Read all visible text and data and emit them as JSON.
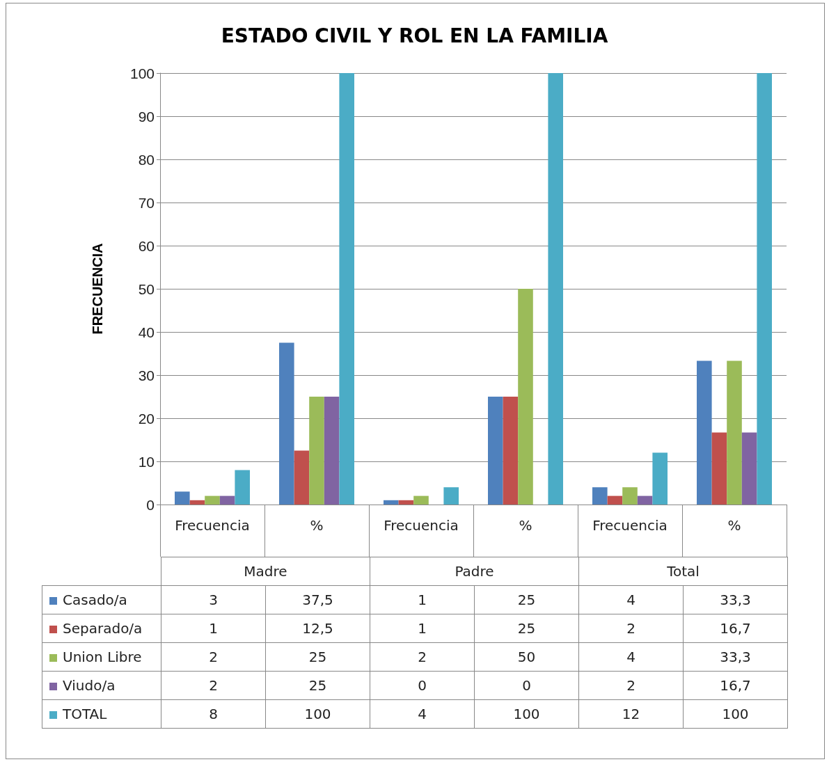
{
  "chart_data": {
    "type": "bar",
    "title": "ESTADO CIVIL Y ROL EN LA FAMILIA",
    "ylabel": "FRECUENCIA",
    "categories": [
      "Frecuencia",
      "%",
      "Frecuencia",
      "%",
      "Frecuencia",
      "%"
    ],
    "annotations": [
      "Madre",
      "Padre",
      "Total"
    ],
    "series": [
      {
        "name": "Casado/a",
        "color": "#4f81bd",
        "values": [
          3,
          37.5,
          1,
          25,
          4,
          33.3
        ],
        "value_labels": [
          "3",
          "37,5",
          "1",
          "25",
          "4",
          "33,3"
        ]
      },
      {
        "name": "Separado/a",
        "color": "#c0504d",
        "values": [
          1,
          12.5,
          1,
          25,
          2,
          16.7
        ],
        "value_labels": [
          "1",
          "12,5",
          "1",
          "25",
          "2",
          "16,7"
        ]
      },
      {
        "name": "Union Libre",
        "color": "#9bbb59",
        "values": [
          2,
          25,
          2,
          50,
          4,
          33.3
        ],
        "value_labels": [
          "2",
          "25",
          "2",
          "50",
          "4",
          "33,3"
        ]
      },
      {
        "name": "Viudo/a",
        "color": "#8064a2",
        "values": [
          2,
          25,
          0,
          0,
          2,
          16.7
        ],
        "value_labels": [
          "2",
          "25",
          "0",
          "0",
          "2",
          "16,7"
        ]
      },
      {
        "name": "TOTAL",
        "color": "#4bacc6",
        "values": [
          8,
          100,
          4,
          100,
          12,
          100
        ],
        "value_labels": [
          "8",
          "100",
          "4",
          "100",
          "12",
          "100"
        ]
      }
    ],
    "ylim": [
      0,
      100
    ],
    "yticks": [
      0,
      10,
      20,
      30,
      40,
      50,
      60,
      70,
      80,
      90,
      100
    ],
    "grid": "y",
    "legend": "bottom"
  }
}
